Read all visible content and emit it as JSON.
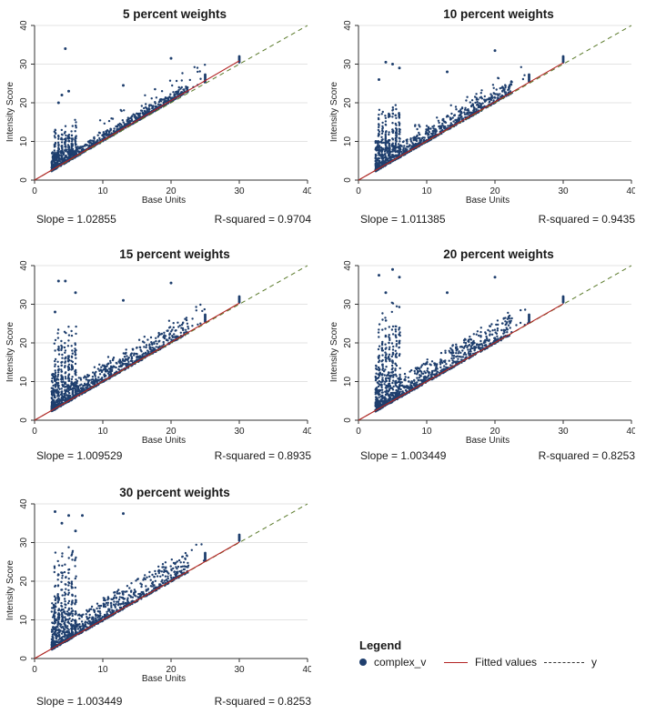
{
  "chart_data": [
    {
      "type": "scatter",
      "title": "5 percent weights",
      "xlabel": "Base Units",
      "ylabel": "Intensity Score",
      "xlim": [
        0,
        40
      ],
      "ylim": [
        0,
        40
      ],
      "xticks": [
        "0",
        "10",
        "20",
        "30",
        "40"
      ],
      "yticks": [
        "0",
        "10",
        "20",
        "30",
        "40"
      ],
      "slope_label": "Slope = 1.02855",
      "rsq_label": "R-squared = 0.9704",
      "slope": 1.02855,
      "spread": 9,
      "outliers": [
        [
          4.5,
          34
        ],
        [
          20,
          31.5
        ],
        [
          5,
          23
        ],
        [
          4,
          22
        ],
        [
          13,
          24.5
        ],
        [
          3.5,
          20
        ]
      ],
      "series": [
        {
          "name": "complex_v",
          "kind": "scatter"
        },
        {
          "name": "Fitted values",
          "kind": "line"
        },
        {
          "name": "y",
          "kind": "dashed-line"
        }
      ]
    },
    {
      "type": "scatter",
      "title": "10 percent weights",
      "xlabel": "Base Units",
      "ylabel": "Intensity Score",
      "xlim": [
        0,
        40
      ],
      "ylim": [
        0,
        40
      ],
      "xticks": [
        "0",
        "10",
        "20",
        "30",
        "40"
      ],
      "yticks": [
        "0",
        "10",
        "20",
        "30",
        "40"
      ],
      "slope_label": "Slope = 1.011385",
      "rsq_label": "R-squared = 0.9435",
      "slope": 1.011385,
      "spread": 14,
      "outliers": [
        [
          4,
          30.5
        ],
        [
          5,
          30
        ],
        [
          6,
          29
        ],
        [
          20,
          33.5
        ],
        [
          13,
          28
        ],
        [
          3,
          26
        ]
      ],
      "series": [
        {
          "name": "complex_v",
          "kind": "scatter"
        },
        {
          "name": "Fitted values",
          "kind": "line"
        },
        {
          "name": "y",
          "kind": "dashed-line"
        }
      ]
    },
    {
      "type": "scatter",
      "title": "15 percent weights",
      "xlabel": "Base Units",
      "ylabel": "Intensity Score",
      "xlim": [
        0,
        40
      ],
      "ylim": [
        0,
        40
      ],
      "xticks": [
        "0",
        "10",
        "20",
        "30",
        "40"
      ],
      "yticks": [
        "0",
        "10",
        "20",
        "30",
        "40"
      ],
      "slope_label": "Slope = 1.009529",
      "rsq_label": "R-squared = 0.8935",
      "slope": 1.009529,
      "spread": 18,
      "outliers": [
        [
          3.5,
          36
        ],
        [
          4.5,
          36
        ],
        [
          6,
          33
        ],
        [
          20,
          35.5
        ],
        [
          13,
          31
        ],
        [
          3,
          28
        ]
      ],
      "series": [
        {
          "name": "complex_v",
          "kind": "scatter"
        },
        {
          "name": "Fitted values",
          "kind": "line"
        },
        {
          "name": "y",
          "kind": "dashed-line"
        }
      ]
    },
    {
      "type": "scatter",
      "title": "20 percent weights",
      "xlabel": "Base Units",
      "ylabel": "Intensity Score",
      "xlim": [
        0,
        40
      ],
      "ylim": [
        0,
        40
      ],
      "xticks": [
        "0",
        "10",
        "20",
        "30",
        "40"
      ],
      "yticks": [
        "0",
        "10",
        "20",
        "30",
        "40"
      ],
      "slope_label": "Slope = 1.003449",
      "rsq_label": "R-squared = 0.8253",
      "slope": 1.003449,
      "spread": 22,
      "outliers": [
        [
          3,
          37.5
        ],
        [
          5,
          39
        ],
        [
          6,
          37
        ],
        [
          20,
          37
        ],
        [
          13,
          33
        ],
        [
          4,
          33
        ]
      ],
      "series": [
        {
          "name": "complex_v",
          "kind": "scatter"
        },
        {
          "name": "Fitted values",
          "kind": "line"
        },
        {
          "name": "y",
          "kind": "dashed-line"
        }
      ]
    },
    {
      "type": "scatter",
      "title": "30 percent weights",
      "xlabel": "Base Units",
      "ylabel": "Intensity Score",
      "xlim": [
        0,
        40
      ],
      "ylim": [
        0,
        40
      ],
      "xticks": [
        "0",
        "10",
        "20",
        "30",
        "40"
      ],
      "yticks": [
        "0",
        "10",
        "20",
        "30",
        "40"
      ],
      "slope_label": "Slope = 1.003449",
      "rsq_label": "R-squared = 0.8253",
      "slope": 1.003449,
      "spread": 22,
      "outliers": [
        [
          3,
          38
        ],
        [
          5,
          37
        ],
        [
          7,
          37
        ],
        [
          13,
          37.5
        ],
        [
          4,
          35
        ],
        [
          6,
          33
        ]
      ],
      "series": [
        {
          "name": "complex_v",
          "kind": "scatter"
        },
        {
          "name": "Fitted values",
          "kind": "line"
        },
        {
          "name": "y",
          "kind": "dashed-line"
        }
      ]
    }
  ],
  "legend": {
    "title": "Legend",
    "items": [
      "complex_v",
      "Fitted values",
      "y"
    ]
  },
  "colors": {
    "points": "#1f3f6e",
    "fitted": "#b22222",
    "identity": "#5a7a2a",
    "grid": "#e3e3e3",
    "axis": "#333333"
  }
}
